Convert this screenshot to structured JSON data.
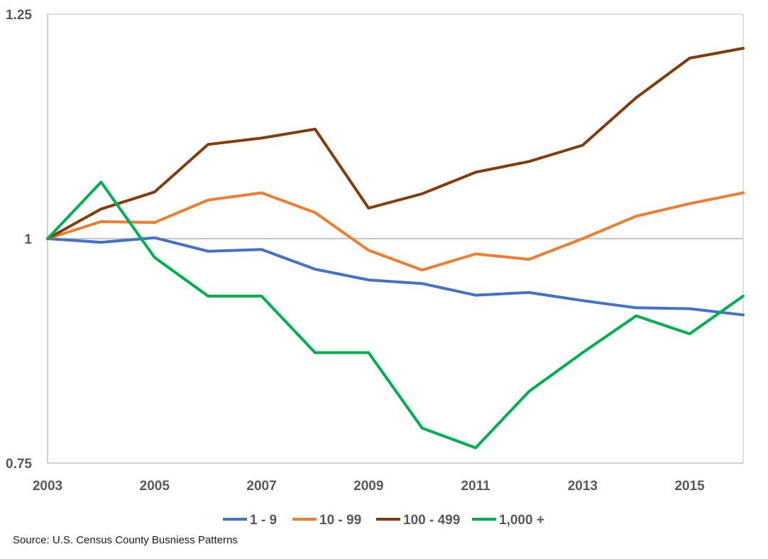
{
  "chart_data": {
    "type": "line",
    "x": [
      2003,
      2004,
      2005,
      2006,
      2007,
      2008,
      2009,
      2010,
      2011,
      2012,
      2013,
      2014,
      2015,
      2016
    ],
    "x_tick_labels": [
      "2003",
      "2005",
      "2007",
      "2009",
      "2011",
      "2013",
      "2015"
    ],
    "x_tick_values": [
      2003,
      2005,
      2007,
      2009,
      2011,
      2013,
      2015
    ],
    "y_tick_labels": [
      "1.25",
      "1",
      "0.75"
    ],
    "y_tick_values": [
      1.25,
      1.0,
      0.75
    ],
    "ylim": [
      0.75,
      1.25
    ],
    "xlim": [
      2003,
      2016
    ],
    "series": [
      {
        "name": "1 - 9",
        "color": "#4472C4",
        "values": [
          1.0,
          0.996,
          1.001,
          0.986,
          0.988,
          0.966,
          0.954,
          0.95,
          0.937,
          0.94,
          0.931,
          0.923,
          0.922,
          0.915
        ]
      },
      {
        "name": "10 - 99",
        "color": "#ED7D31",
        "values": [
          1.0,
          1.019,
          1.018,
          1.043,
          1.051,
          1.029,
          0.987,
          0.965,
          0.983,
          0.977,
          1.0,
          1.025,
          1.039,
          1.051
        ]
      },
      {
        "name": "100 - 499",
        "color": "#843C0C",
        "values": [
          1.0,
          1.033,
          1.052,
          1.105,
          1.112,
          1.122,
          1.034,
          1.05,
          1.074,
          1.086,
          1.104,
          1.157,
          1.201,
          1.212
        ]
      },
      {
        "name": "1,000 +",
        "color": "#00B050",
        "values": [
          1.0,
          1.063,
          0.979,
          0.936,
          0.936,
          0.873,
          0.873,
          0.789,
          0.767,
          0.83,
          0.873,
          0.914,
          0.894,
          0.936
        ]
      }
    ],
    "legend_position": "bottom",
    "grid": {
      "horizontal_reference": 1.0
    }
  },
  "source_text": "Source: U.S. Census County Busniess Patterns"
}
